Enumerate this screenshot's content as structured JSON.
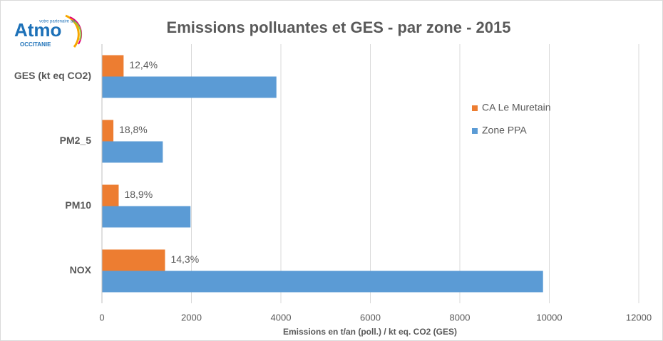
{
  "logo": {
    "name": "Atmo",
    "region": "OCCITANIE",
    "tagline": "votre partenaire air"
  },
  "chart_data": {
    "type": "hbar",
    "title": "Emissions polluantes et GES - par zone - 2015",
    "x_label": "Emissions en t/an (poll.) / kt eq. CO2 (GES)",
    "categories": [
      "GES (kt eq CO2)",
      "PM2_5",
      "PM10",
      "NOX"
    ],
    "series": [
      {
        "name": "CA Le Muretain",
        "color": "#ed7d31",
        "values": [
          484,
          256,
          374,
          1410
        ],
        "share_labels": [
          "12,4%",
          "18,8%",
          "18,9%",
          "14,3%"
        ]
      },
      {
        "name": "Zone PPA",
        "color": "#5b9bd5",
        "values": [
          3900,
          1360,
          1980,
          9860
        ]
      }
    ],
    "xlim": [
      0,
      12000
    ],
    "xticks": [
      0,
      2000,
      4000,
      6000,
      8000,
      10000,
      12000
    ],
    "grid": true,
    "legend": "right"
  }
}
